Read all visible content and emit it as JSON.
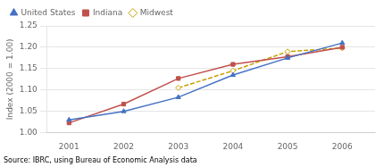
{
  "chart_data": {
    "type": "line",
    "x": [
      2001,
      2002,
      2003,
      2004,
      2005,
      2006
    ],
    "series": [
      {
        "name": "United States",
        "color": "#4472C4",
        "marker": "triangle",
        "line_style": "solid",
        "values": [
          1.03,
          1.05,
          1.083,
          1.135,
          1.175,
          1.21
        ]
      },
      {
        "name": "Indiana",
        "color": "#C0504D",
        "marker": "square",
        "line_style": "solid",
        "values": [
          1.023,
          1.067,
          1.127,
          1.16,
          1.178,
          1.2
        ]
      },
      {
        "name": "Midwest",
        "color": "#C8A000",
        "marker": "diamond",
        "line_style": "dashed",
        "values": [
          null,
          null,
          1.105,
          1.145,
          1.19,
          1.198
        ]
      }
    ],
    "ylabel": "Index (2000 = 1.00)",
    "xlim": [
      2000.6,
      2006.6
    ],
    "xticks": [
      2001,
      2002,
      2003,
      2004,
      2005,
      2006
    ],
    "ylim": [
      1.0,
      1.25
    ],
    "yticks": [
      {
        "value": 1.0,
        "label": "1.00"
      },
      {
        "value": 1.05,
        "label": "1.05"
      },
      {
        "value": 1.1,
        "label": "1.10"
      },
      {
        "value": 1.15,
        "label": "1.15"
      },
      {
        "value": 1.2,
        "label": "1.20"
      },
      {
        "value": 1.25,
        "label": "1.25"
      }
    ],
    "grid": "y",
    "legend": "upper left",
    "annotations": [
      "Source: IBRC, using Bureau of Economic Analysis data"
    ]
  }
}
